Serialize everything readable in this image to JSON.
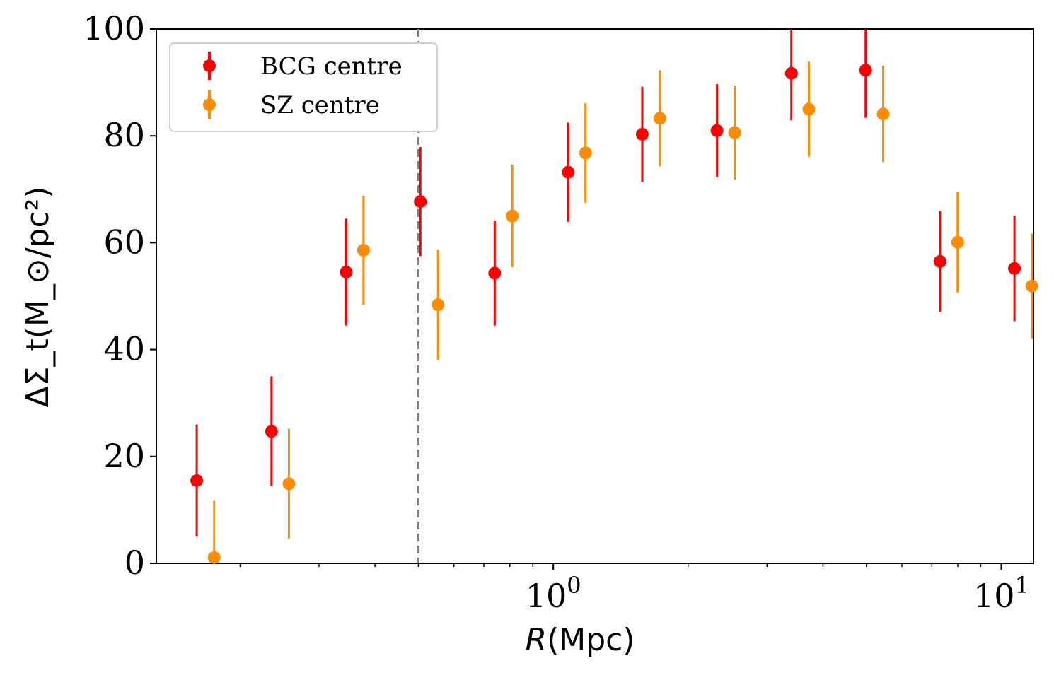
{
  "chart_data": {
    "type": "scatter",
    "x_scale": "log",
    "xlim": [
      0.13,
      11.8
    ],
    "ylim": [
      0,
      100
    ],
    "xlabel_italic": "R",
    "xlabel_unit": "(Mpc)",
    "ylabel": "ΔΣ_t(M_⊙/pc²)",
    "x_ticks": [
      {
        "value": 1,
        "base": "10",
        "exp": "0"
      },
      {
        "value": 10,
        "base": "10",
        "exp": "1"
      }
    ],
    "y_ticks": [
      "0",
      "20",
      "40",
      "60",
      "80",
      "100"
    ],
    "vline": {
      "x": 0.5,
      "style": "dashed",
      "color": "#808080"
    },
    "legend_position": "upper-left",
    "series": [
      {
        "name": "BCG centre",
        "color": "#ff0000",
        "points": [
          {
            "x": 0.16,
            "y": 15.5,
            "err": 10.5
          },
          {
            "x": 0.235,
            "y": 24.7,
            "err": 10.3
          },
          {
            "x": 0.345,
            "y": 54.5,
            "err": 10.0
          },
          {
            "x": 0.505,
            "y": 67.7,
            "err": 10.2
          },
          {
            "x": 0.74,
            "y": 54.3,
            "err": 9.8
          },
          {
            "x": 1.08,
            "y": 73.2,
            "err": 9.3
          },
          {
            "x": 1.58,
            "y": 80.3,
            "err": 8.9
          },
          {
            "x": 2.32,
            "y": 81.0,
            "err": 8.7
          },
          {
            "x": 3.4,
            "y": 91.7,
            "err": 8.8
          },
          {
            "x": 4.98,
            "y": 92.3,
            "err": 8.9
          },
          {
            "x": 7.3,
            "y": 56.5,
            "err": 9.4
          },
          {
            "x": 10.7,
            "y": 55.2,
            "err": 9.9
          }
        ]
      },
      {
        "name": "SZ centre",
        "color": "#ff8c00",
        "points": [
          {
            "x": 0.175,
            "y": 1.1,
            "err": 10.6
          },
          {
            "x": 0.257,
            "y": 14.9,
            "err": 10.3
          },
          {
            "x": 0.377,
            "y": 58.6,
            "err": 10.2
          },
          {
            "x": 0.553,
            "y": 48.4,
            "err": 10.3
          },
          {
            "x": 0.81,
            "y": 65.0,
            "err": 9.6
          },
          {
            "x": 1.18,
            "y": 76.8,
            "err": 9.3
          },
          {
            "x": 1.73,
            "y": 83.3,
            "err": 9.0
          },
          {
            "x": 2.54,
            "y": 80.6,
            "err": 8.8
          },
          {
            "x": 3.72,
            "y": 85.0,
            "err": 8.9
          },
          {
            "x": 5.45,
            "y": 84.1,
            "err": 9.0
          },
          {
            "x": 7.99,
            "y": 60.1,
            "err": 9.4
          },
          {
            "x": 11.7,
            "y": 51.9,
            "err": 9.8
          }
        ]
      }
    ]
  }
}
